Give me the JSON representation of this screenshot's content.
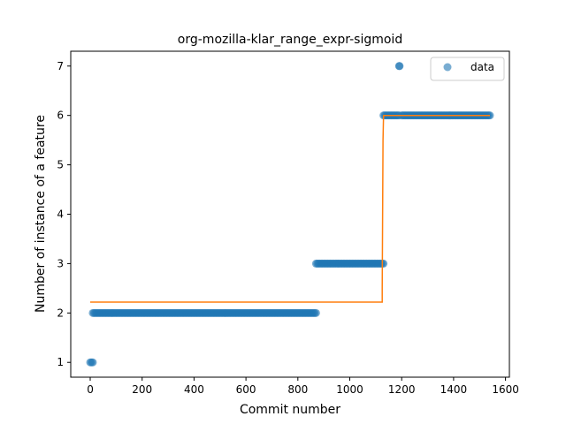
{
  "chart_data": {
    "type": "scatter",
    "title": "org-mozilla-klar_range_expr-sigmoid",
    "xlabel": "Commit number",
    "ylabel": "Number of instance of a feature",
    "xlim": [
      -75,
      1615
    ],
    "ylim": [
      0.7,
      7.3
    ],
    "xticks": [
      0,
      200,
      400,
      600,
      800,
      1000,
      1200,
      1400,
      1600
    ],
    "yticks": [
      1,
      2,
      3,
      4,
      5,
      6,
      7
    ],
    "grid": false,
    "legend": {
      "position": "top-right",
      "entries": [
        "data"
      ]
    },
    "colors": {
      "data": "#1f77b4",
      "fit": "#ff7f0e"
    },
    "series": [
      {
        "name": "data",
        "kind": "scatter",
        "segments": [
          {
            "x_start": 0,
            "x_end": 10,
            "step": 5,
            "y": 1
          },
          {
            "x_start": 10,
            "x_end": 870,
            "step": 5,
            "y": 2
          },
          {
            "x_start": 870,
            "x_end": 1130,
            "step": 5,
            "y": 3
          },
          {
            "x_start": 1130,
            "x_end": 1190,
            "step": 5,
            "y": 6
          },
          {
            "x_start": 1200,
            "x_end": 1540,
            "step": 5,
            "y": 6
          }
        ],
        "points": [
          [
            1190,
            7
          ],
          [
            1192,
            7
          ]
        ]
      },
      {
        "kind": "line",
        "x": [
          0,
          1125,
          1125,
          1128,
          1130,
          1540
        ],
        "y": [
          2.22,
          2.22,
          2.5,
          5.5,
          6.0,
          6.0
        ]
      }
    ]
  }
}
